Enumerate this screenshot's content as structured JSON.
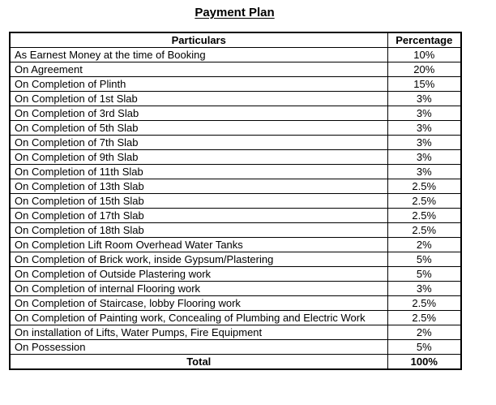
{
  "page": {
    "title": "Payment Plan"
  },
  "colors": {
    "text": "#000000",
    "border": "#000000",
    "background": "#ffffff"
  },
  "table": {
    "headers": {
      "particulars": "Particulars",
      "percentage": "Percentage"
    },
    "rows": [
      {
        "particulars": "As Earnest Money at the time of Booking",
        "percentage": "10%"
      },
      {
        "particulars": "On Agreement",
        "percentage": "20%"
      },
      {
        "particulars": "On Completion of Plinth",
        "percentage": "15%"
      },
      {
        "particulars": "On Completion of 1st Slab",
        "percentage": "3%"
      },
      {
        "particulars": "On Completion of 3rd Slab",
        "percentage": "3%"
      },
      {
        "particulars": "On Completion of 5th Slab",
        "percentage": "3%"
      },
      {
        "particulars": "On Completion of 7th Slab",
        "percentage": "3%"
      },
      {
        "particulars": "On Completion of 9th Slab",
        "percentage": "3%"
      },
      {
        "particulars": "On Completion of 11th Slab",
        "percentage": "3%"
      },
      {
        "particulars": "On Completion of 13th Slab",
        "percentage": "2.5%"
      },
      {
        "particulars": "On Completion of 15th Slab",
        "percentage": "2.5%"
      },
      {
        "particulars": "On Completion of 17th Slab",
        "percentage": "2.5%"
      },
      {
        "particulars": "On Completion of 18th Slab",
        "percentage": "2.5%"
      },
      {
        "particulars": "On Completion Lift Room Overhead Water Tanks",
        "percentage": "2%"
      },
      {
        "particulars": "On Completion of Brick work, inside Gypsum/Plastering",
        "percentage": "5%"
      },
      {
        "particulars": "On Completion of Outside Plastering work",
        "percentage": "5%"
      },
      {
        "particulars": "On Completion of internal Flooring work",
        "percentage": "3%"
      },
      {
        "particulars": "On Completion of Staircase, lobby Flooring work",
        "percentage": "2.5%"
      },
      {
        "particulars": "On Completion of Painting work, Concealing of Plumbing and Electric Work",
        "percentage": "2.5%"
      },
      {
        "particulars": "On installation of Lifts, Water Pumps, Fire Equipment",
        "percentage": "2%"
      },
      {
        "particulars": "On Possession",
        "percentage": "5%"
      }
    ],
    "total": {
      "label": "Total",
      "value": "100%"
    }
  }
}
